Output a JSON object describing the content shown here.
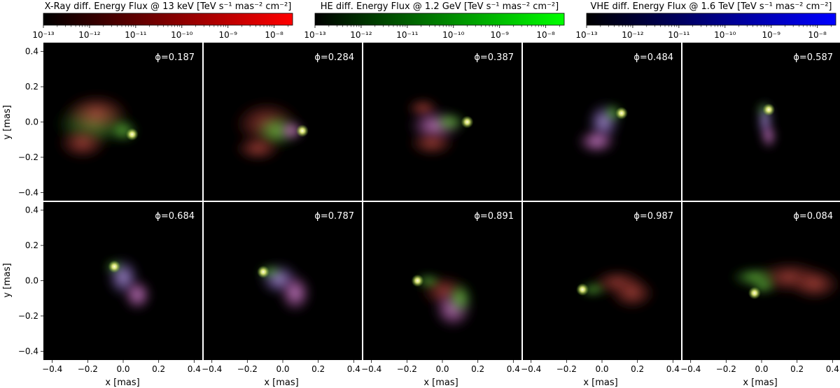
{
  "colorbars": [
    {
      "title_main": "X-Ray diff. Energy Flux @ 13 keV",
      "title_unit": "[TeV s⁻¹ mas⁻² cm⁻²]",
      "color_start": "#000000",
      "color_end": "#ff0000",
      "tick_labels": [
        "10⁻¹³",
        "10⁻¹²",
        "10⁻¹¹",
        "10⁻¹⁰",
        "10⁻⁹",
        "10⁻⁸"
      ]
    },
    {
      "title_main": "HE diff. Energy Flux @ 1.2 GeV",
      "title_unit": "[TeV s⁻¹ mas⁻² cm⁻²]",
      "color_start": "#000000",
      "color_end": "#00ff00",
      "tick_labels": [
        "10⁻¹³",
        "10⁻¹²",
        "10⁻¹¹",
        "10⁻¹⁰",
        "10⁻⁹",
        "10⁻⁸"
      ]
    },
    {
      "title_main": "VHE diff. Energy Flux @ 1.6 TeV",
      "title_unit": "[TeV s⁻¹ mas⁻² cm⁻²]",
      "color_start": "#000000",
      "color_end": "#0000ff",
      "tick_labels": [
        "10⁻¹³",
        "10⁻¹²",
        "10⁻¹¹",
        "10⁻¹⁰",
        "10⁻⁹",
        "10⁻⁸"
      ]
    }
  ],
  "chart_data": {
    "type": "heatmap",
    "rows": 2,
    "cols": 5,
    "xlabel": "x [mas]",
    "ylabel": "y [mas]",
    "xlim": [
      -0.45,
      0.45
    ],
    "ylim": [
      -0.45,
      0.45
    ],
    "x_ticks": [
      -0.4,
      -0.2,
      0.0,
      0.2,
      0.4
    ],
    "x_tick_labels": [
      "−0.4",
      "−0.2",
      "0.0",
      "0.2",
      "0.4"
    ],
    "y_ticks": [
      0.4,
      0.2,
      0.0,
      -0.2,
      -0.4
    ],
    "y_tick_labels": [
      "0.4",
      "0.2",
      "0.0",
      "−0.2",
      "−0.4"
    ],
    "colorbar_range_log10": [
      -13,
      -7.6
    ],
    "colorbar_ticks_log10": [
      -13,
      -12,
      -11,
      -10,
      -9,
      -8
    ],
    "panels": [
      {
        "phase_label": "ϕ=0.187",
        "head": [
          0.05,
          -0.07
        ]
      },
      {
        "phase_label": "ϕ=0.284",
        "head": [
          0.11,
          -0.05
        ]
      },
      {
        "phase_label": "ϕ=0.387",
        "head": [
          0.14,
          0.0
        ]
      },
      {
        "phase_label": "ϕ=0.484",
        "head": [
          0.11,
          0.05
        ]
      },
      {
        "phase_label": "ϕ=0.587",
        "head": [
          0.04,
          0.07
        ]
      },
      {
        "phase_label": "ϕ=0.684",
        "head": [
          -0.05,
          0.08
        ]
      },
      {
        "phase_label": "ϕ=0.787",
        "head": [
          -0.11,
          0.05
        ]
      },
      {
        "phase_label": "ϕ=0.891",
        "head": [
          -0.14,
          0.0
        ]
      },
      {
        "phase_label": "ϕ=0.987",
        "head": [
          -0.11,
          -0.05
        ]
      },
      {
        "phase_label": "ϕ=0.084",
        "head": [
          -0.04,
          -0.07
        ]
      }
    ]
  }
}
